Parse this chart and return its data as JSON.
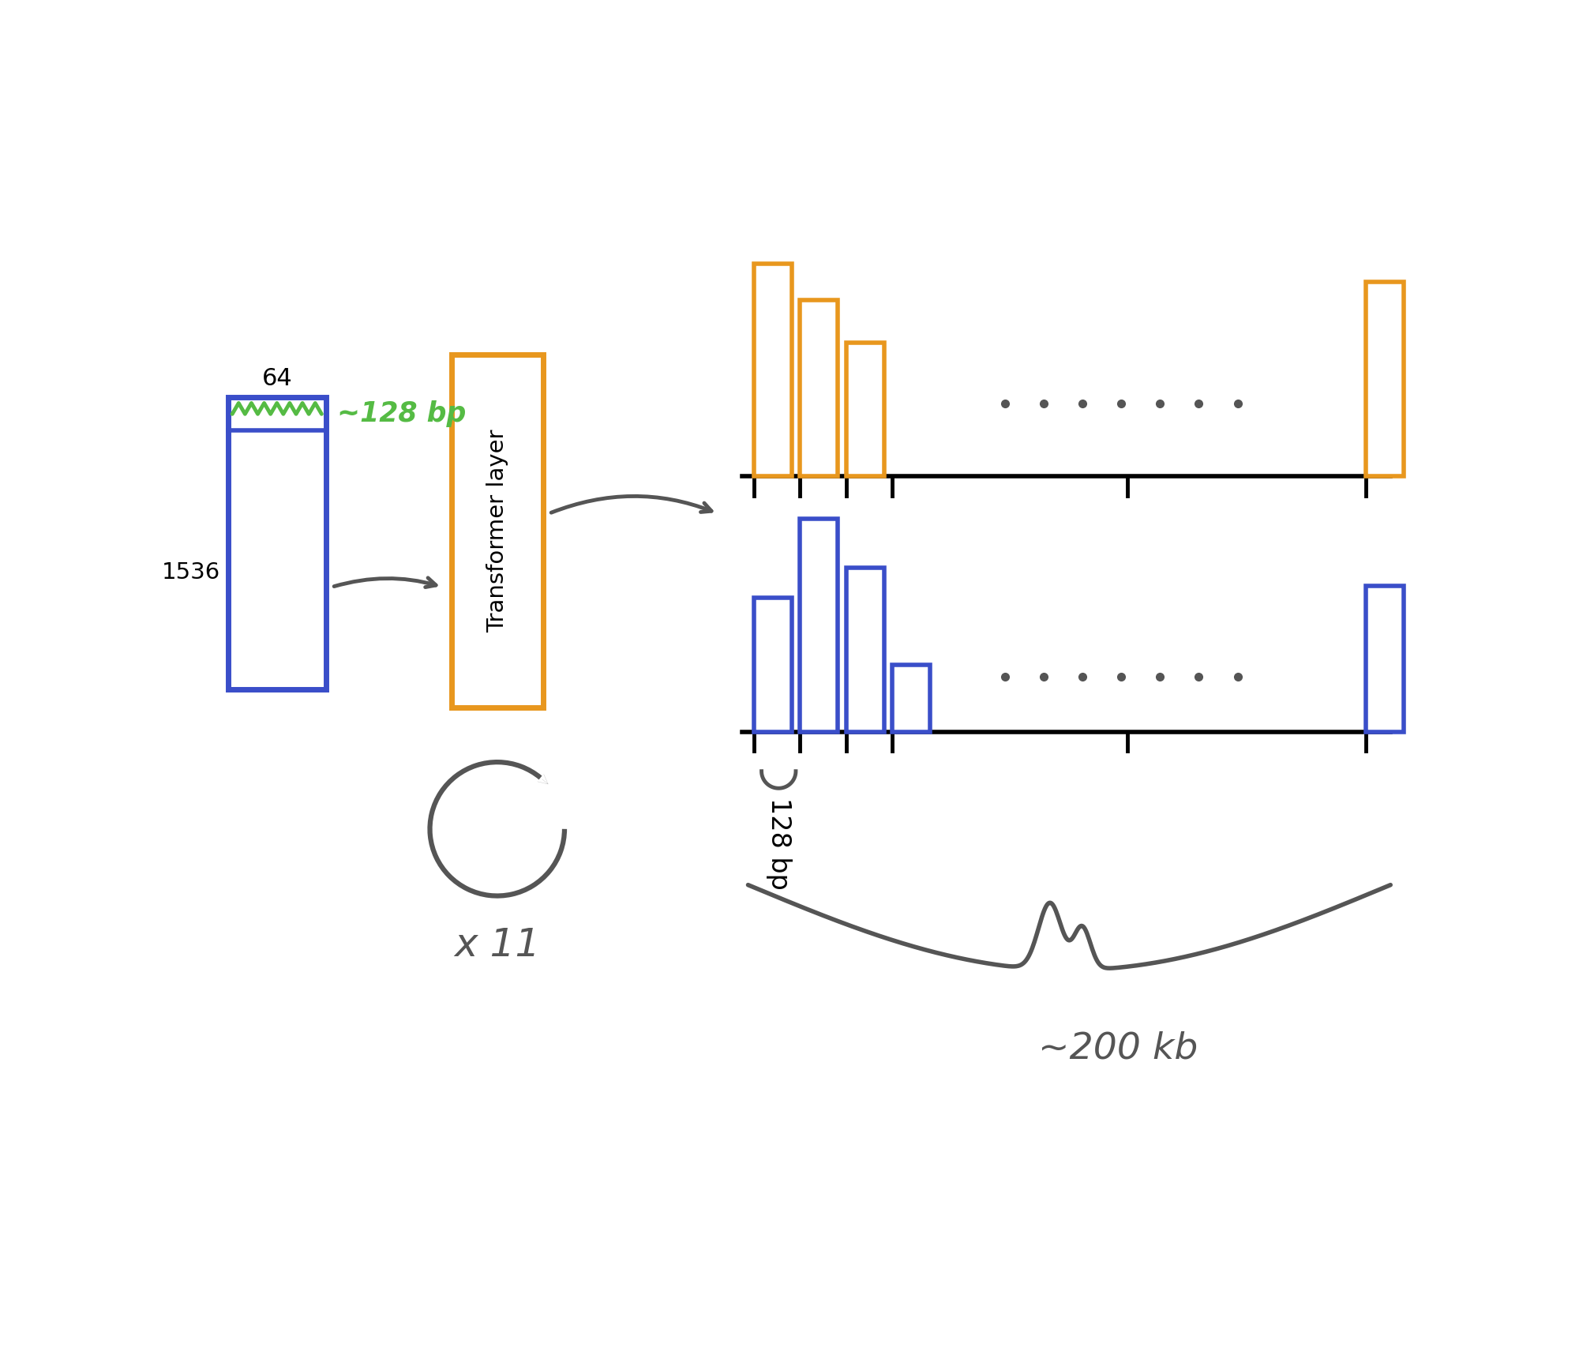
{
  "bg_color": "#ffffff",
  "blue_color": "#3a4ec9",
  "orange_color": "#e8971e",
  "green_color": "#55bb44",
  "dark_gray": "#555555",
  "label_64": "64",
  "label_1536": "1536",
  "label_n128bp": "~128 bp",
  "label_transformer": "Transformer layer",
  "label_x11": "x 11",
  "label_128bp": "128 bp",
  "label_200kb": "~200 kb",
  "figw": 20.0,
  "figh": 17.16
}
